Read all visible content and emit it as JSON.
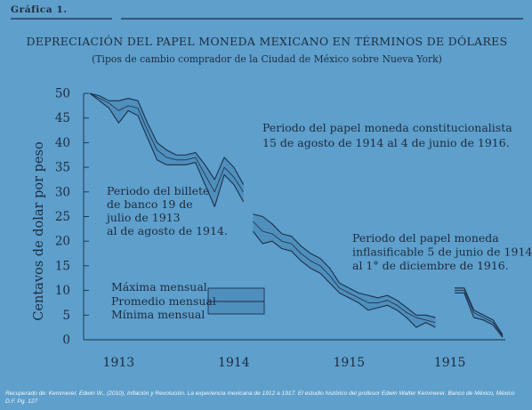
{
  "figure_label": "Gráfica 1.",
  "chart_data": {
    "type": "area",
    "title": "DEPRECIACIÓN DEL PAPEL MONEDA MEXICANO EN TÉRMINOS DE DÓLARES",
    "subtitle": "(Tipos de cambio comprador de la Ciudad de México sobre Nueva York)",
    "ylabel": "Centavos de dolar por peso",
    "xlabel": "",
    "ylim": [
      0,
      50
    ],
    "yticks": [
      0,
      5,
      10,
      15,
      20,
      25,
      30,
      35,
      40,
      45,
      50
    ],
    "year_labels": [
      {
        "label": "1913",
        "x": 3
      },
      {
        "label": "1914",
        "x": 15
      },
      {
        "label": "1915",
        "x": 27
      },
      {
        "label": "1915",
        "x": 37.5
      }
    ],
    "x_range": [
      0,
      43
    ],
    "grid": false,
    "series": [
      {
        "segment": 1,
        "x": [
          0,
          1,
          2,
          3,
          4,
          5,
          6,
          7,
          8,
          9,
          10,
          11,
          12,
          13,
          14,
          15,
          16
        ],
        "max": [
          50,
          49.5,
          48.5,
          48.5,
          49,
          48.5,
          44,
          40,
          38.5,
          37.5,
          37.5,
          38,
          35.5,
          32.5,
          37,
          35,
          31.5
        ],
        "avg": [
          50,
          49,
          48,
          46.5,
          47.5,
          47,
          42.5,
          38.5,
          37,
          36.5,
          36.5,
          37,
          33.5,
          30,
          35,
          33,
          30
        ],
        "min": [
          50,
          48.5,
          47,
          44,
          46.5,
          45.5,
          41,
          36.5,
          35.5,
          35.5,
          35.5,
          36,
          31.5,
          27,
          33.5,
          31.5,
          28
        ]
      },
      {
        "segment": 2,
        "x": [
          17,
          18,
          19,
          20,
          21,
          22,
          23,
          24,
          25,
          26,
          27,
          28,
          29,
          30,
          31,
          32,
          33,
          34,
          35,
          36
        ],
        "max": [
          25.5,
          25,
          23.5,
          21.5,
          21,
          19,
          17.5,
          16.5,
          14.5,
          11.5,
          10.5,
          9.5,
          9,
          8.5,
          9,
          8,
          6.5,
          5,
          5,
          4.5
        ],
        "avg": [
          24,
          22,
          21.5,
          20,
          19.5,
          17.5,
          16,
          15,
          13,
          10.5,
          9.5,
          8.5,
          7.5,
          7.5,
          8,
          7,
          5.5,
          4.5,
          4,
          3.5
        ],
        "min": [
          22,
          19.5,
          20,
          18.5,
          18,
          16,
          14.5,
          13.5,
          11.5,
          9.5,
          8.5,
          7.5,
          6,
          6.5,
          7,
          6,
          4.5,
          2.5,
          3.5,
          2.5
        ]
      },
      {
        "segment": 3,
        "x": [
          38,
          39,
          40,
          41,
          42,
          43
        ],
        "max": [
          10.5,
          10.5,
          6,
          5,
          4,
          1
        ],
        "avg": [
          10,
          10,
          5.5,
          4.5,
          3.5,
          0.8
        ],
        "min": [
          9.5,
          9.5,
          4.5,
          4,
          3,
          0.5
        ]
      }
    ],
    "annotations": [
      {
        "name": "annotation-constitucionalista",
        "lines": [
          "Periodo del papel moneda constitucionalista",
          "15 de agosto de 1914 al 4 de junio de 1916."
        ]
      },
      {
        "name": "annotation-billete-banco",
        "lines": [
          "Periodo del billete",
          "de banco 19 de",
          "julio de 1913",
          "al de agosto de 1914."
        ]
      },
      {
        "name": "annotation-infalsificable",
        "lines": [
          "Periodo del papel moneda",
          "inflasificable 5 de junio de 1914",
          "al 1° de diciembre de 1916."
        ]
      }
    ],
    "legend": {
      "placement": "bottom-left",
      "entries": [
        "Máxima mensual",
        "Promedio mensual",
        "Mínima mensual"
      ]
    },
    "colors": {
      "background": "#5e9fcc",
      "band_fill": "#4f8fbd",
      "line": "#1c2f46",
      "text": "#1d2c3e",
      "caption": "#f4f8fb"
    }
  },
  "caption": "Recuperado de: Kemmerer, Edwin W., (2010), Inflación y Revolución. La experiencia mexicana de 1912 a 1917. El estudio histórico del profesor Edwin Walter Kemmerer. Banco de México, México D.F. Pg. 127"
}
